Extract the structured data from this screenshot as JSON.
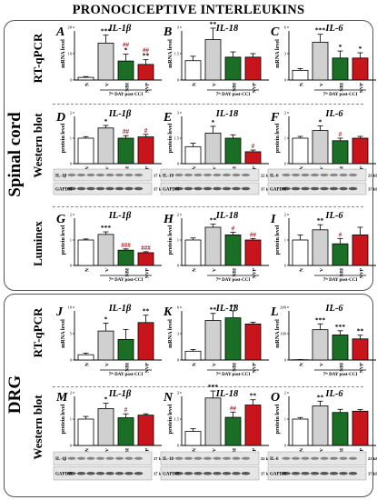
{
  "title": "PRONOCICEPTIVE INTERLEUKINS",
  "groups": {
    "spinal": "Spinal cord",
    "drg": "DRG"
  },
  "methods": {
    "qpcr": "RT-qPCR",
    "western": "Western blot",
    "luminex": "Luminex"
  },
  "common": {
    "categories": [
      "N",
      "V",
      "NBI",
      "NVP"
    ],
    "xlabel": "7th DAY post-CCI",
    "group_colors": [
      "#ffffff",
      "#d0d0d0",
      "#1b6e26",
      "#c8151b"
    ]
  },
  "chart_data": [
    {
      "id": "A",
      "type": "bar",
      "title": "IL-1β",
      "ylabel": "mRNA level",
      "values": [
        1,
        14,
        7.2,
        5.9
      ],
      "err": [
        0.3,
        3,
        2.6,
        1.8
      ],
      "ylim": [
        0,
        20
      ],
      "sig_top": [
        "",
        "***",
        "*",
        "**"
      ],
      "sig_bottom": [
        "",
        "",
        "##",
        "##"
      ]
    },
    {
      "id": "B",
      "type": "bar",
      "title": "IL-18",
      "ylabel": "mRNA level",
      "values": [
        1.1,
        2.3,
        1.3,
        1.3
      ],
      "err": [
        0.25,
        0.65,
        0.3,
        0.2
      ],
      "ylim": [
        0,
        3
      ],
      "sig_top": [
        "",
        "**",
        "",
        ""
      ],
      "sig_bottom": [
        "",
        "",
        "",
        ""
      ]
    },
    {
      "id": "C",
      "type": "bar",
      "title": "IL-6",
      "ylabel": "mRNA level",
      "values": [
        1.1,
        4.3,
        2.5,
        2.5
      ],
      "err": [
        0.2,
        0.9,
        0.8,
        0.6
      ],
      "ylim": [
        0,
        6
      ],
      "sig_top": [
        "",
        "***",
        "*",
        "*"
      ],
      "sig_bottom": [
        "",
        "",
        "",
        ""
      ]
    },
    {
      "id": "D",
      "type": "bar",
      "title": "IL-1β",
      "ylabel": "protein level",
      "values": [
        1,
        1.4,
        1,
        1.05
      ],
      "err": [
        0.06,
        0.1,
        0.1,
        0.1
      ],
      "ylim": [
        0,
        2
      ],
      "sig_top": [
        "",
        "*",
        "",
        ""
      ],
      "sig_bottom": [
        "",
        "",
        "##",
        "#"
      ],
      "blot": {
        "label1": "IL-1β",
        "label2": "GAPDH",
        "kda1": "17 kDa",
        "kda2": "37 kDa"
      }
    },
    {
      "id": "E",
      "type": "bar",
      "title": "IL-18",
      "ylabel": "protein level",
      "values": [
        1,
        1.8,
        1.5,
        0.7
      ],
      "err": [
        0.2,
        0.4,
        0.2,
        0.1
      ],
      "ylim": [
        0,
        3
      ],
      "sig_top": [
        "",
        "*",
        "",
        ""
      ],
      "sig_bottom": [
        "",
        "",
        "",
        "#"
      ],
      "blot": {
        "label1": "IL-18",
        "label2": "GAPDH",
        "kda1": "22 kDa",
        "kda2": "37 kDa"
      }
    },
    {
      "id": "F",
      "type": "bar",
      "title": "IL-6",
      "ylabel": "protein level",
      "values": [
        1,
        1.3,
        0.9,
        1
      ],
      "err": [
        0.07,
        0.18,
        0.1,
        0.07
      ],
      "ylim": [
        0,
        2
      ],
      "sig_top": [
        "",
        "*",
        "",
        ""
      ],
      "sig_bottom": [
        "",
        "",
        "#",
        ""
      ],
      "blot": {
        "label1": "IL-6",
        "label2": "GAPDH",
        "kda1": "21 kDa",
        "kda2": "37 kDa"
      }
    },
    {
      "id": "G",
      "type": "bar",
      "title": "IL-1β",
      "ylabel": "protein level",
      "values": [
        1,
        1.22,
        0.6,
        0.5
      ],
      "err": [
        0.04,
        0.1,
        0.05,
        0.04
      ],
      "ylim": [
        0,
        2
      ],
      "sig_top": [
        "",
        "***",
        "",
        ""
      ],
      "sig_bottom": [
        "",
        "",
        "###",
        "###"
      ]
    },
    {
      "id": "H",
      "type": "bar",
      "title": "IL-18",
      "ylabel": "protein level",
      "values": [
        1,
        1.5,
        1.2,
        1
      ],
      "err": [
        0.08,
        0.12,
        0.1,
        0.06
      ],
      "ylim": [
        0,
        2
      ],
      "sig_top": [
        "",
        "**",
        "",
        ""
      ],
      "sig_bottom": [
        "",
        "",
        "#",
        "##"
      ]
    },
    {
      "id": "I",
      "type": "bar",
      "title": "IL-6",
      "ylabel": "protein level",
      "values": [
        1,
        1.4,
        0.85,
        1.2
      ],
      "err": [
        0.2,
        0.2,
        0.2,
        0.3
      ],
      "ylim": [
        0,
        2
      ],
      "sig_top": [
        "",
        "**",
        "",
        ""
      ],
      "sig_bottom": [
        "",
        "",
        "#",
        ""
      ]
    },
    {
      "id": "J",
      "type": "bar",
      "title": "IL-1β",
      "ylabel": "mRNA level",
      "values": [
        1,
        5.5,
        3.9,
        7.1
      ],
      "err": [
        0.3,
        1.5,
        1.9,
        1.4
      ],
      "ylim": [
        0,
        10
      ],
      "sig_top": [
        "",
        "*",
        "",
        "**"
      ],
      "sig_bottom": [
        "",
        "",
        "",
        ""
      ]
    },
    {
      "id": "K",
      "type": "bar",
      "title": "IL-18",
      "ylabel": "mRNA level",
      "values": [
        1,
        4.5,
        4.8,
        4.1
      ],
      "err": [
        0.2,
        0.8,
        0.8,
        0.2
      ],
      "ylim": [
        0,
        6
      ],
      "sig_top": [
        "",
        "**",
        "**",
        ""
      ],
      "sig_bottom": [
        "",
        "",
        "",
        ""
      ]
    },
    {
      "id": "L",
      "type": "bar",
      "title": "IL-6",
      "ylabel": "mRNA level",
      "values": [
        1,
        115,
        95,
        80
      ],
      "err": [
        0.5,
        22,
        16,
        14
      ],
      "ylim": [
        0,
        200
      ],
      "sig_top": [
        "",
        "***",
        "***",
        "**"
      ],
      "sig_bottom": [
        "",
        "",
        "",
        ""
      ]
    },
    {
      "id": "M",
      "type": "bar",
      "title": "IL-1β",
      "ylabel": "protein level",
      "values": [
        1,
        1.4,
        1.05,
        1.15
      ],
      "err": [
        0.1,
        0.2,
        0.15,
        0.05
      ],
      "ylim": [
        0,
        2
      ],
      "sig_top": [
        "",
        "*",
        "",
        ""
      ],
      "sig_bottom": [
        "",
        "",
        "#",
        ""
      ],
      "blot": {
        "label1": "IL-1β",
        "label2": "GAPDH",
        "kda1": "17 kDa",
        "kda2": "37 kDa"
      }
    },
    {
      "id": "N",
      "type": "bar",
      "title": "IL-18",
      "ylabel": "protein level",
      "values": [
        0.8,
        2.7,
        1.6,
        2.3
      ],
      "err": [
        0.15,
        0.4,
        0.3,
        0.3
      ],
      "ylim": [
        0,
        3
      ],
      "sig_top": [
        "",
        "***",
        "",
        "**"
      ],
      "sig_bottom": [
        "",
        "",
        "##",
        ""
      ],
      "blot": {
        "label1": "IL-18",
        "label2": "GAPDH",
        "kda1": "22 kDa",
        "kda2": "37 kDa"
      }
    },
    {
      "id": "O",
      "type": "bar",
      "title": "IL-6",
      "ylabel": "protein level",
      "values": [
        1,
        1.5,
        1.25,
        1.3
      ],
      "err": [
        0.06,
        0.18,
        0.12,
        0.06
      ],
      "ylim": [
        0,
        2
      ],
      "sig_top": [
        "",
        "**",
        "",
        ""
      ],
      "sig_bottom": [
        "",
        "",
        "",
        ""
      ],
      "blot": {
        "label1": "IL-6",
        "label2": "GAPDH",
        "kda1": "21 kDa",
        "kda2": "37 kDa"
      }
    }
  ]
}
